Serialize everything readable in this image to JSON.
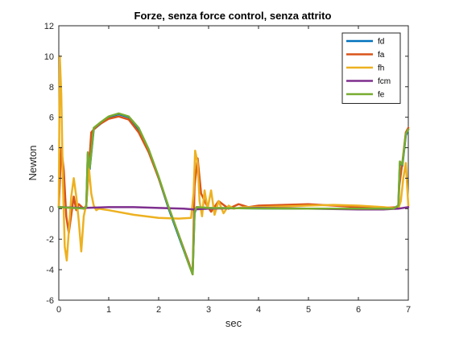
{
  "chart_data": {
    "type": "line",
    "title": "Forze, senza force control, senza attrito",
    "xlabel": "sec",
    "ylabel": "Newton",
    "xlim": [
      0,
      7
    ],
    "ylim": [
      -6,
      12
    ],
    "xticks": [
      0,
      1,
      2,
      3,
      4,
      5,
      6,
      7
    ],
    "yticks": [
      -6,
      -4,
      -2,
      0,
      2,
      4,
      6,
      8,
      10,
      12
    ],
    "grid": false,
    "legend_position": "top-right",
    "series": [
      {
        "name": "fd",
        "color": "#0072BD",
        "points": [
          [
            0,
            0.1
          ],
          [
            0.3,
            0.05
          ],
          [
            0.5,
            0.02
          ],
          [
            0.55,
            0.1
          ],
          [
            0.58,
            3.6
          ],
          [
            0.62,
            2.6
          ],
          [
            0.7,
            5.2
          ],
          [
            0.85,
            5.6
          ],
          [
            1.0,
            6.0
          ],
          [
            1.2,
            6.2
          ],
          [
            1.4,
            6.0
          ],
          [
            1.6,
            5.2
          ],
          [
            1.8,
            3.8
          ],
          [
            2.0,
            2.0
          ],
          [
            2.2,
            0.0
          ],
          [
            2.4,
            -1.8
          ],
          [
            2.6,
            -3.6
          ],
          [
            2.68,
            -4.3
          ],
          [
            2.72,
            -0.3
          ],
          [
            2.76,
            0.1
          ],
          [
            3.0,
            0.05
          ],
          [
            4.0,
            0.02
          ],
          [
            5.0,
            0.0
          ],
          [
            6.0,
            0.0
          ],
          [
            6.7,
            0.0
          ],
          [
            6.8,
            0.2
          ],
          [
            6.83,
            3.0
          ],
          [
            6.88,
            2.8
          ],
          [
            6.95,
            4.8
          ],
          [
            7.0,
            5.2
          ]
        ]
      },
      {
        "name": "fa",
        "color": "#D95319",
        "points": [
          [
            0,
            0.1
          ],
          [
            0.05,
            4.0
          ],
          [
            0.1,
            2.5
          ],
          [
            0.15,
            -0.5
          ],
          [
            0.2,
            -1.6
          ],
          [
            0.25,
            -0.4
          ],
          [
            0.3,
            0.8
          ],
          [
            0.35,
            -0.1
          ],
          [
            0.4,
            0.3
          ],
          [
            0.5,
            0.0
          ],
          [
            0.55,
            0.2
          ],
          [
            0.6,
            2.5
          ],
          [
            0.65,
            5.0
          ],
          [
            0.7,
            5.2
          ],
          [
            0.8,
            5.5
          ],
          [
            1.0,
            5.9
          ],
          [
            1.2,
            6.05
          ],
          [
            1.4,
            5.85
          ],
          [
            1.6,
            5.0
          ],
          [
            1.8,
            3.7
          ],
          [
            2.0,
            2.0
          ],
          [
            2.2,
            0.1
          ],
          [
            2.4,
            -1.7
          ],
          [
            2.6,
            -3.5
          ],
          [
            2.68,
            -4.3
          ],
          [
            2.72,
            1.5
          ],
          [
            2.78,
            3.3
          ],
          [
            2.85,
            1.0
          ],
          [
            2.95,
            0.3
          ],
          [
            3.05,
            -0.2
          ],
          [
            3.2,
            0.5
          ],
          [
            3.4,
            0.0
          ],
          [
            3.6,
            0.3
          ],
          [
            3.8,
            0.1
          ],
          [
            4.0,
            0.2
          ],
          [
            4.5,
            0.25
          ],
          [
            5.0,
            0.3
          ],
          [
            5.5,
            0.2
          ],
          [
            6.0,
            0.1
          ],
          [
            6.5,
            0.05
          ],
          [
            6.8,
            0.1
          ],
          [
            6.82,
            1.5
          ],
          [
            6.88,
            3.0
          ],
          [
            6.95,
            5.0
          ],
          [
            7.0,
            5.3
          ]
        ]
      },
      {
        "name": "fh",
        "color": "#EDB120",
        "points": [
          [
            0,
            0.1
          ],
          [
            0.02,
            10.0
          ],
          [
            0.05,
            7.5
          ],
          [
            0.08,
            2.0
          ],
          [
            0.12,
            -2.5
          ],
          [
            0.16,
            -3.4
          ],
          [
            0.2,
            -1.5
          ],
          [
            0.25,
            0.8
          ],
          [
            0.3,
            2.0
          ],
          [
            0.35,
            0.8
          ],
          [
            0.4,
            -0.8
          ],
          [
            0.45,
            -2.8
          ],
          [
            0.5,
            -0.5
          ],
          [
            0.55,
            0.3
          ],
          [
            0.6,
            2.8
          ],
          [
            0.65,
            1.0
          ],
          [
            0.7,
            0.2
          ],
          [
            0.75,
            -0.1
          ],
          [
            0.8,
            0.0
          ],
          [
            1.0,
            -0.1
          ],
          [
            1.5,
            -0.4
          ],
          [
            2.0,
            -0.6
          ],
          [
            2.4,
            -0.65
          ],
          [
            2.65,
            -0.6
          ],
          [
            2.7,
            1.0
          ],
          [
            2.73,
            3.8
          ],
          [
            2.78,
            3.0
          ],
          [
            2.82,
            0.5
          ],
          [
            2.87,
            -0.5
          ],
          [
            2.92,
            1.2
          ],
          [
            2.98,
            0.0
          ],
          [
            3.05,
            1.2
          ],
          [
            3.12,
            -0.4
          ],
          [
            3.2,
            0.5
          ],
          [
            3.3,
            -0.3
          ],
          [
            3.4,
            0.2
          ],
          [
            3.5,
            0.0
          ],
          [
            3.7,
            0.1
          ],
          [
            4.0,
            0.1
          ],
          [
            4.5,
            0.15
          ],
          [
            5.0,
            0.2
          ],
          [
            5.5,
            0.25
          ],
          [
            6.0,
            0.2
          ],
          [
            6.5,
            0.1
          ],
          [
            6.8,
            0.0
          ],
          [
            6.85,
            0.5
          ],
          [
            6.9,
            2.0
          ],
          [
            6.95,
            3.0
          ],
          [
            7.0,
            0.2
          ]
        ]
      },
      {
        "name": "fcm",
        "color": "#7E2F8E",
        "points": [
          [
            0,
            0.1
          ],
          [
            0.5,
            0.05
          ],
          [
            1.0,
            0.1
          ],
          [
            1.5,
            0.1
          ],
          [
            2.0,
            0.05
          ],
          [
            2.5,
            0.0
          ],
          [
            2.7,
            -0.05
          ],
          [
            3.0,
            0.0
          ],
          [
            4.0,
            0.05
          ],
          [
            5.0,
            0.0
          ],
          [
            6.0,
            -0.05
          ],
          [
            6.5,
            -0.05
          ],
          [
            6.8,
            0.0
          ],
          [
            7.0,
            0.1
          ]
        ]
      },
      {
        "name": "fe",
        "color": "#77AC30",
        "points": [
          [
            0,
            0.1
          ],
          [
            0.3,
            0.05
          ],
          [
            0.5,
            0.02
          ],
          [
            0.55,
            0.1
          ],
          [
            0.58,
            3.7
          ],
          [
            0.62,
            2.7
          ],
          [
            0.7,
            5.3
          ],
          [
            0.85,
            5.7
          ],
          [
            1.0,
            6.05
          ],
          [
            1.2,
            6.25
          ],
          [
            1.4,
            6.05
          ],
          [
            1.6,
            5.3
          ],
          [
            1.8,
            3.9
          ],
          [
            2.0,
            2.1
          ],
          [
            2.2,
            0.1
          ],
          [
            2.4,
            -1.7
          ],
          [
            2.6,
            -3.6
          ],
          [
            2.68,
            -4.3
          ],
          [
            2.72,
            -0.2
          ],
          [
            2.76,
            0.1
          ],
          [
            3.0,
            0.05
          ],
          [
            4.0,
            0.02
          ],
          [
            5.0,
            0.0
          ],
          [
            6.0,
            0.0
          ],
          [
            6.7,
            0.0
          ],
          [
            6.8,
            0.2
          ],
          [
            6.83,
            3.1
          ],
          [
            6.88,
            2.9
          ],
          [
            6.95,
            4.9
          ],
          [
            7.0,
            5.2
          ]
        ]
      }
    ]
  }
}
